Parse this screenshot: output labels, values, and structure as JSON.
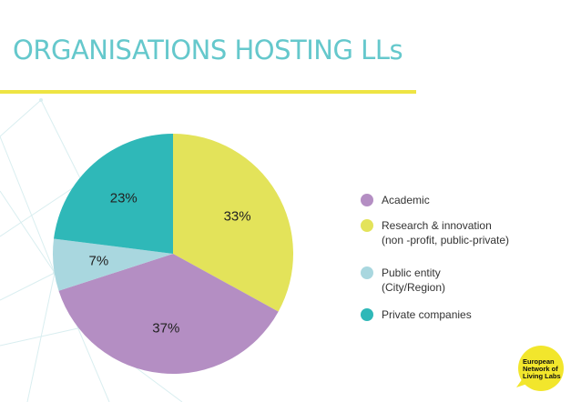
{
  "slide": {
    "title": "ORGANISATIONS HOSTING LLs",
    "accent_color": "#eee443",
    "title_color": "#65c8cc"
  },
  "chart_data": {
    "type": "pie",
    "title": "",
    "start_angle_deg": 0,
    "direction": "clockwise",
    "slices": [
      {
        "name": "Research & innovation (non -profit, public-private)",
        "value": 33,
        "label": "33%",
        "color": "#e3e35a"
      },
      {
        "name": "Academic",
        "value": 37,
        "label": "37%",
        "color": "#b48ec3"
      },
      {
        "name": "Public entity (City/Region)",
        "value": 7,
        "label": "7%",
        "color": "#a9d7df"
      },
      {
        "name": "Private companies",
        "value": 23,
        "label": "23%",
        "color": "#2fb8b8"
      }
    ],
    "legend": {
      "placement": "right",
      "items": [
        {
          "lines": [
            "Academic"
          ],
          "color": "#b48ec3"
        },
        {
          "lines": [
            "Research & innovation",
            "(non -profit, public-private)"
          ],
          "color": "#e3e35a"
        },
        {
          "lines": [
            "Public entity",
            "(City/Region)"
          ],
          "color": "#a9d7df"
        },
        {
          "lines": [
            "Private companies"
          ],
          "color": "#2fb8b8"
        }
      ]
    }
  },
  "logo": {
    "lines": [
      "European",
      "Network of",
      "Living Labs"
    ],
    "color": "#f2e62c"
  }
}
